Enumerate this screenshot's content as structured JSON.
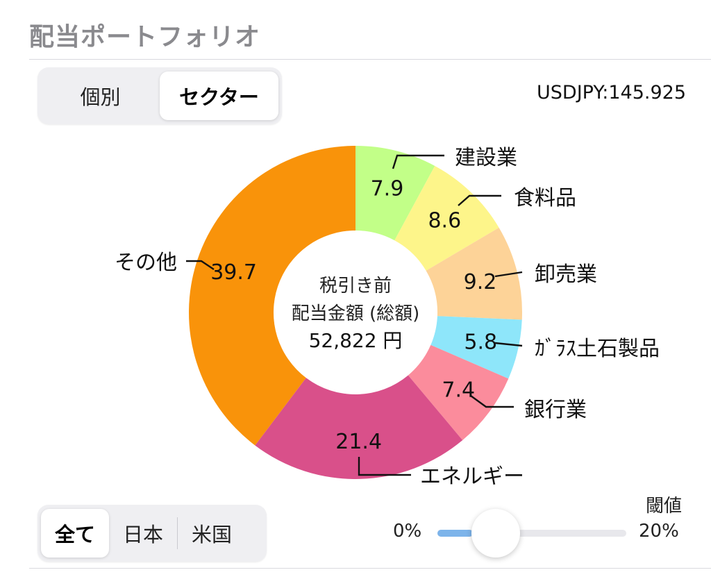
{
  "header": {
    "title": "配当ポートフォリオ"
  },
  "view_tabs": [
    {
      "label": "個別",
      "active": false
    },
    {
      "label": "セクター",
      "active": true
    }
  ],
  "fx_rate": "USDJPY:145.925",
  "market_tabs": [
    {
      "label": "全て",
      "active": true
    },
    {
      "label": "日本",
      "active": false
    },
    {
      "label": "米国",
      "active": false
    }
  ],
  "threshold": {
    "label": "閾値",
    "min_label": "0%",
    "max_label": "20%",
    "value_fraction": 0.31
  },
  "chart_data": {
    "type": "pie",
    "variant": "donut",
    "center_text": {
      "line1": "税引き前",
      "line2": "配当金額 (総額)",
      "line3": "52,822 円"
    },
    "slices": [
      {
        "label": "建設業",
        "value": 7.9,
        "value_label": "7.9",
        "color": "#c2ff88"
      },
      {
        "label": "食料品",
        "value": 8.6,
        "value_label": "8.6",
        "color": "#fdf58a"
      },
      {
        "label": "卸売業",
        "value": 9.2,
        "value_label": "9.2",
        "color": "#fdd398"
      },
      {
        "label": "ｶﾞﾗｽ土石製品",
        "value": 5.8,
        "value_label": "5.8",
        "color": "#8ee6fa"
      },
      {
        "label": "銀行業",
        "value": 7.4,
        "value_label": "7.4",
        "color": "#fb8c9c"
      },
      {
        "label": "エネルギー",
        "value": 21.4,
        "value_label": "21.4",
        "color": "#d9508a"
      },
      {
        "label": "その他",
        "value": 39.7,
        "value_label": "39.7",
        "color": "#f9930a"
      }
    ]
  }
}
